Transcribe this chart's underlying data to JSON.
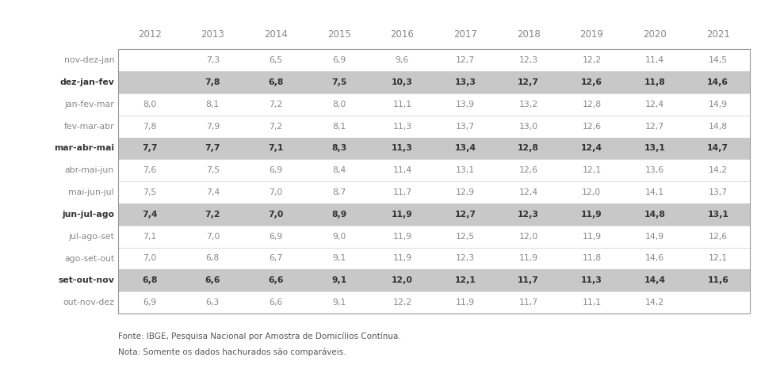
{
  "columns": [
    "2012",
    "2013",
    "2014",
    "2015",
    "2016",
    "2017",
    "2018",
    "2019",
    "2020",
    "2021"
  ],
  "rows": [
    "nov-dez-jan",
    "dez-jan-fev",
    "jan-fev-mar",
    "fev-mar-abr",
    "mar-abr-mai",
    "abr-mai-jun",
    "mai-jun-jul",
    "jun-jul-ago",
    "jul-ago-set",
    "ago-set-out",
    "set-out-nov",
    "out-nov-dez"
  ],
  "data": [
    [
      null,
      7.3,
      6.5,
      6.9,
      9.6,
      12.7,
      12.3,
      12.2,
      11.4,
      14.5
    ],
    [
      null,
      7.8,
      6.8,
      7.5,
      10.3,
      13.3,
      12.7,
      12.6,
      11.8,
      14.6
    ],
    [
      8.0,
      8.1,
      7.2,
      8.0,
      11.1,
      13.9,
      13.2,
      12.8,
      12.4,
      14.9
    ],
    [
      7.8,
      7.9,
      7.2,
      8.1,
      11.3,
      13.7,
      13.0,
      12.6,
      12.7,
      14.8
    ],
    [
      7.7,
      7.7,
      7.1,
      8.3,
      11.3,
      13.4,
      12.8,
      12.4,
      13.1,
      14.7
    ],
    [
      7.6,
      7.5,
      6.9,
      8.4,
      11.4,
      13.1,
      12.6,
      12.1,
      13.6,
      14.2
    ],
    [
      7.5,
      7.4,
      7.0,
      8.7,
      11.7,
      12.9,
      12.4,
      12.0,
      14.1,
      13.7
    ],
    [
      7.4,
      7.2,
      7.0,
      8.9,
      11.9,
      12.7,
      12.3,
      11.9,
      14.8,
      13.1
    ],
    [
      7.1,
      7.0,
      6.9,
      9.0,
      11.9,
      12.5,
      12.0,
      11.9,
      14.9,
      12.6
    ],
    [
      7.0,
      6.8,
      6.7,
      9.1,
      11.9,
      12.3,
      11.9,
      11.8,
      14.6,
      12.1
    ],
    [
      6.8,
      6.6,
      6.6,
      9.1,
      12.0,
      12.1,
      11.7,
      11.3,
      14.4,
      11.6
    ],
    [
      6.9,
      6.3,
      6.6,
      9.1,
      12.2,
      11.9,
      11.7,
      11.1,
      14.2,
      null
    ]
  ],
  "highlighted_rows": [
    1,
    4,
    7,
    10
  ],
  "highlight_color": "#c8c8c8",
  "normal_color": "#ffffff",
  "border_color": "#888888",
  "text_color": "#888888",
  "bold_text_color": "#333333",
  "row_label_color": "#888888",
  "bold_rows": [
    1,
    4,
    7,
    10
  ],
  "header_color": "#888888",
  "footer_lines": [
    "Fonte: IBGE, Pesquisa Nacional por Amostra de Domicílios Contínua.",
    "Nota: Somente os dados hachurados são comparáveis."
  ]
}
